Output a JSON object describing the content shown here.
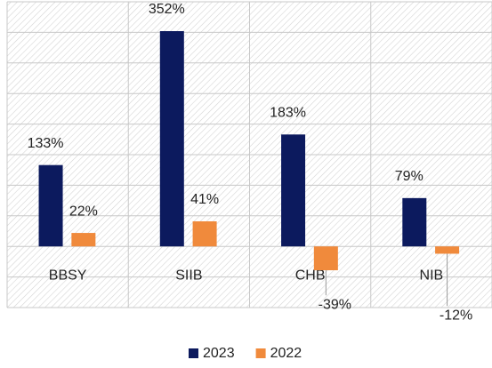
{
  "chart_data": {
    "type": "bar",
    "categories": [
      "BBSY",
      "SIIB",
      "CHB",
      "NIB"
    ],
    "series": [
      {
        "name": "2023",
        "color": "#0c1a5e",
        "values": [
          133,
          352,
          183,
          79
        ],
        "value_labels": [
          "133%",
          "352%",
          "183%",
          "79%"
        ]
      },
      {
        "name": "2022",
        "color": "#f08a3c",
        "values": [
          22,
          41,
          -39,
          -12
        ],
        "value_labels": [
          "22%",
          "41%",
          "-39%",
          "-12%"
        ]
      }
    ],
    "ylim": [
      -100,
      400
    ],
    "yticks": [
      -100,
      -50,
      0,
      50,
      100,
      150,
      200,
      250,
      300,
      350,
      400
    ],
    "grid": true,
    "legend": "bottom"
  }
}
